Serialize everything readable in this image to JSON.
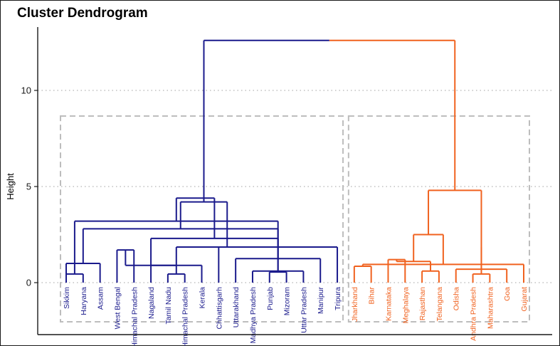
{
  "chart_data": {
    "type": "dendrogram",
    "title": "Cluster Dendrogram",
    "xlabel": "",
    "ylabel": "Height",
    "ylim": [
      -2.7,
      13.5
    ],
    "yticks": [
      0,
      5,
      10
    ],
    "grid": "horizontal dotted at ticks",
    "colors": {
      "cluster1": "#1a1a8c",
      "cluster2": "#f0621f",
      "box": "#bdbdbd",
      "grid": "#b3b3b3"
    },
    "leaves": [
      "Sikkim",
      "Haryana",
      "Assam",
      "West Bengal",
      "Himachal Pradesh",
      "Nagaland",
      "Tamil Nadu",
      "Himachal Pradesh",
      "Kerala",
      "Chhattisgarh",
      "Uttarakhand",
      "Madhya Pradesh",
      "Punjab",
      "Mizoram",
      "Uttar Pradesh",
      "Manipur",
      "Tripura",
      "Jharkhand",
      "Bihar",
      "Karnataka",
      "Meghalaya",
      "Rajasthan",
      "Telangana",
      "Odisha",
      "Andhra Pradesh",
      "Maharashtra",
      "Goa",
      "Gujarat"
    ],
    "leaf_clusters": [
      1,
      1,
      1,
      1,
      1,
      1,
      1,
      1,
      1,
      1,
      1,
      1,
      1,
      1,
      1,
      1,
      1,
      2,
      2,
      2,
      2,
      2,
      2,
      2,
      2,
      2,
      2,
      2
    ],
    "merges": [
      {
        "a": [
          1,
          0
        ],
        "b": [
          1,
          1
        ],
        "h": 0.45
      },
      {
        "a": [
          1,
          0
        ],
        "b": [
          1,
          2
        ],
        "h": 1.0
      },
      {
        "a": [
          1,
          3
        ],
        "b": [
          1,
          4
        ],
        "h": 1.7
      },
      {
        "a": [
          1,
          6
        ],
        "b": [
          1,
          7
        ],
        "h": 0.45
      },
      {
        "a": [
          1,
          5
        ],
        "b": [
          1,
          8
        ],
        "h": 0.9
      },
      {
        "a": [
          1,
          12
        ],
        "b": [
          1,
          13
        ],
        "h": 0.55
      },
      {
        "a": [
          1,
          11
        ],
        "b": [
          1,
          14
        ],
        "h": 0.6
      },
      {
        "a": [
          1,
          10
        ],
        "b": [
          1,
          15
        ],
        "h": 1.25
      },
      {
        "a": [
          1,
          9
        ],
        "b": [
          1,
          16
        ],
        "h": 1.85
      },
      {
        "a": [
          1,
          19
        ],
        "b": [
          1,
          20
        ],
        "h": 0.9
      },
      {
        "a": [
          1,
          21
        ],
        "b": [
          1,
          22
        ],
        "h": 1.85
      },
      {
        "a": [
          1,
          18
        ],
        "b": [
          1,
          23
        ],
        "h": 2.8
      },
      {
        "a": [
          1,
          17
        ],
        "b": [
          1,
          24
        ],
        "h": 3.2
      },
      {
        "a": [
          1,
          25
        ],
        "b": [
          1,
          26
        ],
        "h": 2.3
      },
      {
        "a": [
          1,
          27
        ],
        "b": [
          1,
          28
        ],
        "h": 4.2
      },
      {
        "a": [
          1,
          29
        ],
        "b": [
          1,
          30
        ],
        "h": 4.4
      },
      {
        "a": [
          2,
          0
        ],
        "b": [
          2,
          1
        ],
        "h": 0.85
      },
      {
        "a": [
          2,
          2
        ],
        "b": [
          2,
          3
        ],
        "h": 1.2
      },
      {
        "a": [
          2,
          4
        ],
        "b": [
          2,
          5
        ],
        "h": 0.6
      },
      {
        "a": [
          2,
          7
        ],
        "b": [
          2,
          8
        ],
        "h": 0.45
      },
      {
        "a": [
          2,
          6
        ],
        "b": [
          2,
          9
        ],
        "h": 0.7
      },
      {
        "a": [
          2,
          10
        ],
        "b": [
          2,
          11
        ],
        "h": 0.95
      },
      {
        "a": [
          2,
          12
        ],
        "b": [
          2,
          13
        ],
        "h": 1.1
      },
      {
        "a": [
          2,
          14
        ],
        "b": [
          2,
          15
        ],
        "h": 1.85
      },
      {
        "a": [
          2,
          16
        ],
        "b": [
          2,
          17
        ],
        "h": 2.5
      },
      {
        "a": [
          2,
          18
        ],
        "b": [
          2,
          19
        ],
        "h": 4.8
      },
      {
        "a": [
          1,
          31
        ],
        "b": [
          2,
          20
        ],
        "h": 12.6
      }
    ],
    "rect_clusters": [
      {
        "from": 0,
        "to": 16
      },
      {
        "from": 17,
        "to": 27
      }
    ]
  }
}
